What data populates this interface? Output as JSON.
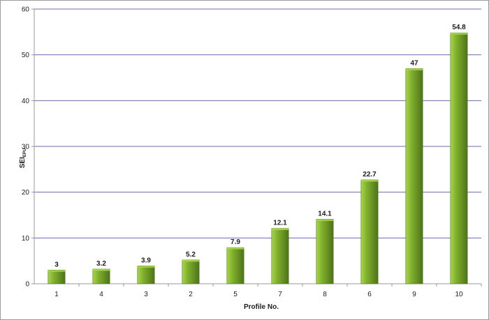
{
  "chart_data": {
    "type": "bar",
    "categories": [
      "1",
      "4",
      "3",
      "2",
      "5",
      "7",
      "8",
      "6",
      "9",
      "10"
    ],
    "values": [
      3,
      3.2,
      3.9,
      5.2,
      7.9,
      12.1,
      14.1,
      22.7,
      47,
      54.8
    ],
    "data_labels": [
      "3",
      "3.2",
      "3.9",
      "5.2",
      "7.9",
      "12.1",
      "14.1",
      "22.7",
      "47",
      "54.8"
    ],
    "title": "",
    "xlabel": "Profile No.",
    "ylabel": "SEI",
    "ylabel_subscript": "EPU",
    "ylim": [
      0,
      60
    ],
    "yticks": [
      "0",
      "10",
      "20",
      "30",
      "40",
      "50",
      "60"
    ],
    "grid": true,
    "legend": "none",
    "colors": {
      "bar_light": "#a6d64a",
      "bar_mid": "#7fae2c",
      "bar_dark": "#4d7418",
      "grid": "#6b6ba8",
      "axis": "#9a9a9a"
    }
  }
}
